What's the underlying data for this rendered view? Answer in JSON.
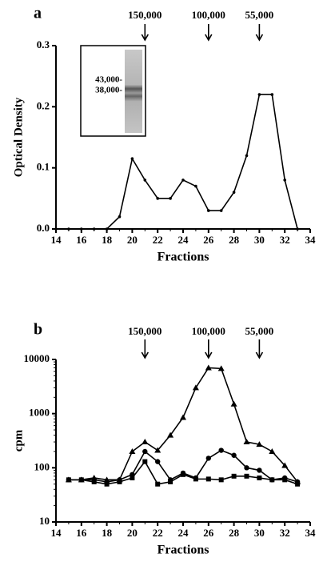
{
  "chart_data": [
    {
      "type": "line",
      "panel_label": "a",
      "xlabel": "Fractions",
      "ylabel": "Optical Density",
      "x": [
        14,
        15,
        16,
        17,
        18,
        19,
        20,
        21,
        22,
        23,
        24,
        25,
        26,
        27,
        28,
        29,
        30,
        31,
        32,
        33
      ],
      "values": [
        0,
        0,
        0,
        0,
        0,
        0.02,
        0.115,
        0.08,
        0.05,
        0.05,
        0.08,
        0.07,
        0.03,
        0.03,
        0.06,
        0.12,
        0.22,
        0.22,
        0.08,
        0
      ],
      "color": "#000000",
      "xlim": [
        14,
        34
      ],
      "xticks": [
        14,
        16,
        18,
        20,
        22,
        24,
        26,
        28,
        30,
        32,
        34
      ],
      "ylim": [
        0,
        0.3
      ],
      "yticks": [
        {
          "value": 0,
          "label": "0.0"
        },
        0.1,
        0.2,
        0.3
      ],
      "annotations": [
        {
          "label": "150,000",
          "x": 21
        },
        {
          "label": "100,000",
          "x": 26
        },
        {
          "label": "55,000",
          "x": 30
        }
      ],
      "inset": {
        "labels": [
          "43,000-",
          "38,000-"
        ]
      }
    },
    {
      "type": "line",
      "panel_label": "b",
      "xlabel": "Fractions",
      "ylabel": "cpm",
      "log_scale": true,
      "x": [
        15,
        16,
        17,
        18,
        19,
        20,
        21,
        22,
        23,
        24,
        25,
        26,
        27,
        28,
        29,
        30,
        31,
        32,
        33
      ],
      "series": [
        {
          "marker": "triangle",
          "color": "#000000",
          "values": [
            60,
            60,
            65,
            60,
            60,
            200,
            300,
            210,
            400,
            850,
            3000,
            7000,
            6800,
            1500,
            300,
            270,
            200,
            110,
            55
          ]
        },
        {
          "marker": "circle",
          "color": "#000000",
          "values": [
            60,
            60,
            60,
            55,
            60,
            75,
            200,
            130,
            60,
            80,
            65,
            150,
            210,
            170,
            100,
            90,
            60,
            65,
            55
          ]
        },
        {
          "marker": "square",
          "color": "#000000",
          "values": [
            60,
            60,
            55,
            50,
            55,
            65,
            130,
            50,
            55,
            75,
            62,
            62,
            60,
            70,
            70,
            65,
            60,
            60,
            50
          ]
        }
      ],
      "xlim": [
        14,
        34
      ],
      "xticks": [
        14,
        16,
        18,
        20,
        22,
        24,
        26,
        28,
        30,
        32,
        34
      ],
      "ylim": [
        10,
        10000
      ],
      "yticks": [
        10,
        100,
        1000,
        10000
      ],
      "annotations": [
        {
          "label": "150,000",
          "x": 21
        },
        {
          "label": "100,000",
          "x": 26
        },
        {
          "label": "55,000",
          "x": 30
        }
      ]
    }
  ]
}
